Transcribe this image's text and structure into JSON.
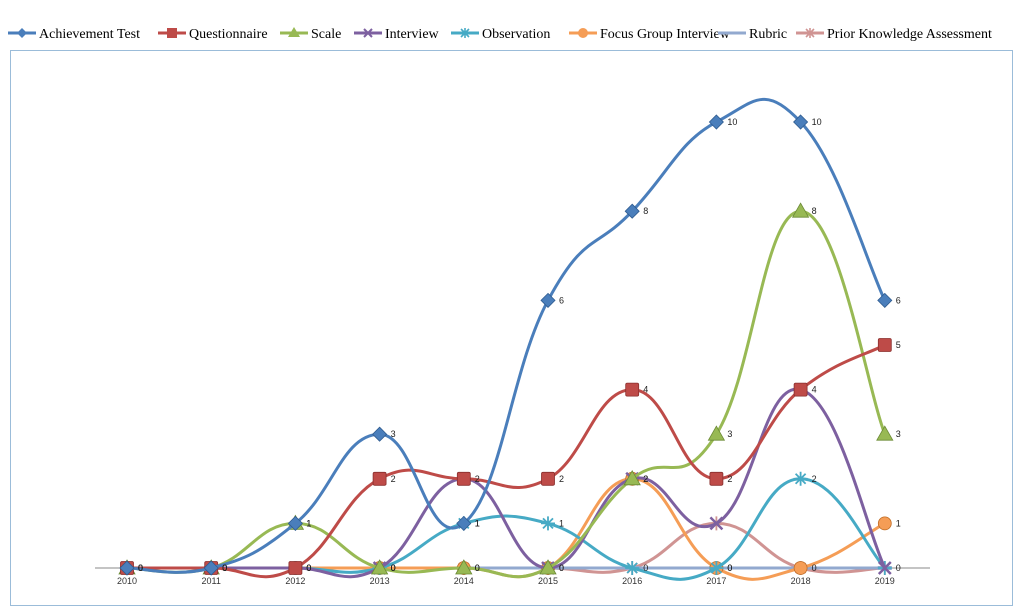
{
  "chart_data": {
    "type": "line",
    "title": "",
    "xlabel": "",
    "ylabel": "",
    "x": [
      "2010",
      "2011",
      "2012",
      "2013",
      "2014",
      "2015",
      "2016",
      "2017",
      "2018",
      "2019"
    ],
    "ylim": [
      0,
      10
    ],
    "grid": false,
    "legend_position": "top",
    "series": [
      {
        "name": "Achievement Test",
        "color": "#4a7ebb",
        "marker": "diamond",
        "values": [
          0,
          0,
          1,
          3,
          1,
          6,
          8,
          10,
          10,
          6
        ],
        "labels": true
      },
      {
        "name": "Questionnaire",
        "color": "#be4b48",
        "marker": "square",
        "values": [
          0,
          0,
          0,
          2,
          2,
          2,
          4,
          2,
          4,
          5
        ],
        "labels": true
      },
      {
        "name": "Scale",
        "color": "#98b954",
        "marker": "triangle",
        "values": [
          0,
          0,
          1,
          0,
          0,
          0,
          2,
          3,
          8,
          3
        ],
        "labels": true
      },
      {
        "name": "Interview",
        "color": "#7d60a0",
        "marker": "x",
        "values": [
          0,
          0,
          0,
          0,
          2,
          0,
          2,
          1,
          4,
          0
        ],
        "labels": false
      },
      {
        "name": "Observation",
        "color": "#46aac5",
        "marker": "star",
        "values": [
          0,
          0,
          0,
          0,
          1,
          1,
          0,
          0,
          2,
          0
        ],
        "labels": true
      },
      {
        "name": "Focus Group Interview",
        "color": "#f59d56",
        "marker": "circle",
        "values": [
          0,
          0,
          0,
          0,
          0,
          0,
          2,
          0,
          0,
          1
        ],
        "labels": true
      },
      {
        "name": "Rubric",
        "color": "#92a9cf",
        "marker": "dash",
        "values": [
          0,
          0,
          0,
          0,
          0,
          0,
          0,
          0,
          0,
          0
        ],
        "labels": false
      },
      {
        "name": "Prior Knowledge Assessment",
        "color": "#d09493",
        "marker": "star",
        "values": [
          0,
          0,
          0,
          0,
          0,
          0,
          0,
          1,
          0,
          0
        ],
        "labels": false
      }
    ]
  }
}
